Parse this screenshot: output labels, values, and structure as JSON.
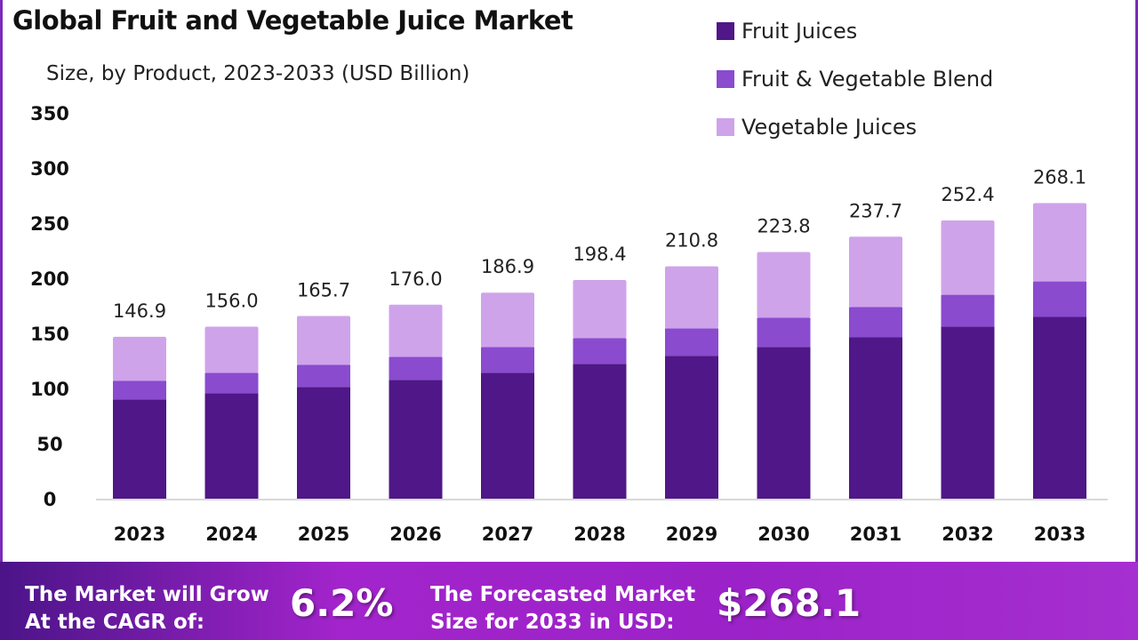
{
  "chart_data": {
    "type": "bar",
    "stacked": true,
    "title": "Global Fruit and Vegetable Juice Market",
    "subtitle": "Size, by Product, 2023-2033 (USD Billion)",
    "categories": [
      "2023",
      "2024",
      "2025",
      "2026",
      "2027",
      "2028",
      "2029",
      "2030",
      "2031",
      "2032",
      "2033"
    ],
    "series": [
      {
        "name": "Fruit Juices",
        "color": "#4f1787",
        "values": [
          90.1,
          95.7,
          101.4,
          107.8,
          114.2,
          122.3,
          129.5,
          137.6,
          146.4,
          156.0,
          164.9
        ]
      },
      {
        "name": "Fruit & Vegetable Blend",
        "color": "#8a4bcf",
        "values": [
          16.9,
          18.5,
          20.1,
          20.9,
          23.4,
          23.3,
          25.0,
          26.5,
          27.4,
          29.0,
          32.2
        ]
      },
      {
        "name": "Vegetable Juices",
        "color": "#cfa3ea",
        "values": [
          39.9,
          41.8,
          44.2,
          47.3,
          49.3,
          52.8,
          56.3,
          59.7,
          63.9,
          67.4,
          71.0
        ]
      }
    ],
    "totals": [
      "146.9",
      "156.0",
      "165.7",
      "176.0",
      "186.9",
      "198.4",
      "210.8",
      "223.8",
      "237.7",
      "252.4",
      "268.1"
    ],
    "yticks": [
      "0",
      "50",
      "100",
      "150",
      "200",
      "250",
      "300",
      "350"
    ],
    "ylim": [
      0,
      350
    ],
    "grid": false,
    "legend_position": "top-right"
  },
  "banner": {
    "cagr_label_1": "The Market will Grow",
    "cagr_label_2": "At the CAGR of:",
    "cagr_value": "6.2%",
    "forecast_label_1": "The Forecasted Market",
    "forecast_label_2": "Size for 2033 in USD:",
    "forecast_value": "$268.1"
  }
}
